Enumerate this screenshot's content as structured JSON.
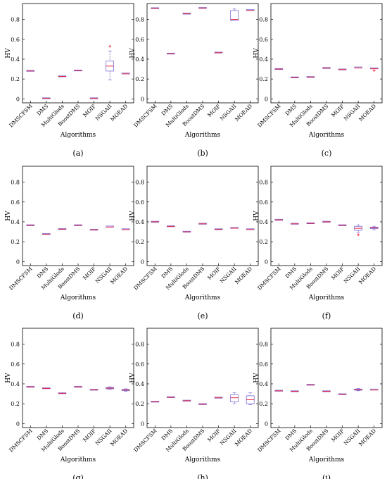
{
  "chart_data": [
    {
      "type": "box",
      "label": "(a)",
      "xlabel": "Algorithms",
      "ylabel": "HV",
      "ylim": [
        -0.04,
        0.96
      ],
      "yticks": [
        0,
        0.2,
        0.4,
        0.6,
        0.8
      ],
      "categories": [
        "DMSCFSM",
        "DMS",
        "MultiGlods",
        "BoostDMS",
        "MOIF",
        "NSGAII",
        "MOEAD"
      ],
      "boxes": [
        {
          "min": 0.279,
          "q1": 0.28,
          "median": 0.281,
          "q3": 0.282,
          "max": 0.283,
          "outliers": []
        },
        {
          "min": 0.003,
          "q1": 0.004,
          "median": 0.005,
          "q3": 0.006,
          "max": 0.007,
          "outliers": []
        },
        {
          "min": 0.224,
          "q1": 0.225,
          "median": 0.226,
          "q3": 0.227,
          "max": 0.228,
          "outliers": []
        },
        {
          "min": 0.283,
          "q1": 0.284,
          "median": 0.285,
          "q3": 0.286,
          "max": 0.287,
          "outliers": []
        },
        {
          "min": 0.003,
          "q1": 0.004,
          "median": 0.005,
          "q3": 0.006,
          "max": 0.007,
          "outliers": []
        },
        {
          "min": 0.19,
          "q1": 0.28,
          "median": 0.33,
          "q3": 0.38,
          "max": 0.48,
          "outliers": [
            0.53
          ]
        },
        {
          "min": 0.245,
          "q1": 0.248,
          "median": 0.252,
          "q3": 0.256,
          "max": 0.26,
          "outliers": []
        }
      ]
    },
    {
      "type": "box",
      "label": "(b)",
      "xlabel": "Algorithms",
      "ylabel": "HV",
      "ylim": [
        -0.04,
        0.96
      ],
      "yticks": [
        0,
        0.2,
        0.4,
        0.6,
        0.8
      ],
      "categories": [
        "DMSCFSM",
        "DMS",
        "MultiGlods",
        "BoostDMS",
        "MOIF",
        "NSGAII",
        "MOEAD"
      ],
      "boxes": [
        {
          "min": 0.91,
          "q1": 0.911,
          "median": 0.912,
          "q3": 0.913,
          "max": 0.914,
          "outliers": []
        },
        {
          "min": 0.453,
          "q1": 0.454,
          "median": 0.455,
          "q3": 0.456,
          "max": 0.457,
          "outliers": []
        },
        {
          "min": 0.855,
          "q1": 0.856,
          "median": 0.857,
          "q3": 0.858,
          "max": 0.859,
          "outliers": []
        },
        {
          "min": 0.913,
          "q1": 0.914,
          "median": 0.915,
          "q3": 0.916,
          "max": 0.917,
          "outliers": []
        },
        {
          "min": 0.463,
          "q1": 0.464,
          "median": 0.465,
          "q3": 0.466,
          "max": 0.467,
          "outliers": []
        },
        {
          "min": 0.79,
          "q1": 0.79,
          "median": 0.8,
          "q3": 0.89,
          "max": 0.905,
          "outliers": []
        },
        {
          "min": 0.88,
          "q1": 0.885,
          "median": 0.89,
          "q3": 0.895,
          "max": 0.9,
          "outliers": []
        }
      ]
    },
    {
      "type": "box",
      "label": "(c)",
      "xlabel": "Algorithms",
      "ylabel": "HV",
      "ylim": [
        -0.04,
        0.96
      ],
      "yticks": [
        0,
        0.2,
        0.4,
        0.6,
        0.8
      ],
      "categories": [
        "DMSCFSM",
        "DMS",
        "MultiGlods",
        "BoostDMS",
        "MOIF",
        "NSGAII",
        "MOEAD"
      ],
      "boxes": [
        {
          "min": 0.298,
          "q1": 0.299,
          "median": 0.3,
          "q3": 0.301,
          "max": 0.302,
          "outliers": []
        },
        {
          "min": 0.213,
          "q1": 0.214,
          "median": 0.215,
          "q3": 0.216,
          "max": 0.217,
          "outliers": []
        },
        {
          "min": 0.218,
          "q1": 0.219,
          "median": 0.22,
          "q3": 0.221,
          "max": 0.222,
          "outliers": []
        },
        {
          "min": 0.308,
          "q1": 0.309,
          "median": 0.31,
          "q3": 0.311,
          "max": 0.312,
          "outliers": []
        },
        {
          "min": 0.293,
          "q1": 0.294,
          "median": 0.295,
          "q3": 0.296,
          "max": 0.297,
          "outliers": []
        },
        {
          "min": 0.305,
          "q1": 0.308,
          "median": 0.312,
          "q3": 0.316,
          "max": 0.32,
          "outliers": []
        },
        {
          "min": 0.29,
          "q1": 0.298,
          "median": 0.303,
          "q3": 0.308,
          "max": 0.315,
          "outliers": [
            0.285
          ]
        }
      ]
    },
    {
      "type": "box",
      "label": "(d)",
      "xlabel": "Algorithms",
      "ylabel": "HV",
      "ylim": [
        -0.04,
        0.96
      ],
      "yticks": [
        0,
        0.2,
        0.4,
        0.6,
        0.8
      ],
      "categories": [
        "DMSCFSM",
        "DMS",
        "MultiGlods",
        "BoostDMS",
        "MOIF",
        "NSGAII",
        "MOEAD"
      ],
      "boxes": [
        {
          "min": 0.363,
          "q1": 0.364,
          "median": 0.365,
          "q3": 0.366,
          "max": 0.367,
          "outliers": []
        },
        {
          "min": 0.275,
          "q1": 0.276,
          "median": 0.277,
          "q3": 0.278,
          "max": 0.279,
          "outliers": []
        },
        {
          "min": 0.325,
          "q1": 0.326,
          "median": 0.327,
          "q3": 0.328,
          "max": 0.329,
          "outliers": []
        },
        {
          "min": 0.363,
          "q1": 0.364,
          "median": 0.365,
          "q3": 0.366,
          "max": 0.367,
          "outliers": []
        },
        {
          "min": 0.318,
          "q1": 0.319,
          "median": 0.32,
          "q3": 0.321,
          "max": 0.322,
          "outliers": []
        },
        {
          "min": 0.338,
          "q1": 0.343,
          "median": 0.348,
          "q3": 0.353,
          "max": 0.358,
          "outliers": []
        },
        {
          "min": 0.313,
          "q1": 0.318,
          "median": 0.322,
          "q3": 0.326,
          "max": 0.331,
          "outliers": []
        }
      ]
    },
    {
      "type": "box",
      "label": "(e)",
      "xlabel": "Algorithms",
      "ylabel": "HV",
      "ylim": [
        -0.04,
        0.96
      ],
      "yticks": [
        0,
        0.2,
        0.4,
        0.6,
        0.8
      ],
      "categories": [
        "DMSCFSM",
        "DMS",
        "MultiGlods",
        "BoostDMS",
        "MOIF",
        "NSGAII",
        "MOEAD"
      ],
      "boxes": [
        {
          "min": 0.398,
          "q1": 0.399,
          "median": 0.4,
          "q3": 0.401,
          "max": 0.402,
          "outliers": []
        },
        {
          "min": 0.353,
          "q1": 0.354,
          "median": 0.355,
          "q3": 0.356,
          "max": 0.357,
          "outliers": []
        },
        {
          "min": 0.298,
          "q1": 0.299,
          "median": 0.3,
          "q3": 0.301,
          "max": 0.302,
          "outliers": []
        },
        {
          "min": 0.378,
          "q1": 0.379,
          "median": 0.38,
          "q3": 0.381,
          "max": 0.382,
          "outliers": []
        },
        {
          "min": 0.323,
          "q1": 0.324,
          "median": 0.325,
          "q3": 0.326,
          "max": 0.327,
          "outliers": []
        },
        {
          "min": 0.328,
          "q1": 0.332,
          "median": 0.336,
          "q3": 0.34,
          "max": 0.344,
          "outliers": []
        },
        {
          "min": 0.317,
          "q1": 0.32,
          "median": 0.323,
          "q3": 0.326,
          "max": 0.329,
          "outliers": []
        }
      ]
    },
    {
      "type": "box",
      "label": "(f)",
      "xlabel": "Algorithms",
      "ylabel": "HV",
      "ylim": [
        -0.04,
        0.96
      ],
      "yticks": [
        0,
        0.2,
        0.4,
        0.6,
        0.8
      ],
      "categories": [
        "DMSCFSM",
        "DMS",
        "MultiGlods",
        "BoostDMS",
        "MOIF",
        "NSGAII",
        "MOEAD"
      ],
      "boxes": [
        {
          "min": 0.418,
          "q1": 0.419,
          "median": 0.42,
          "q3": 0.421,
          "max": 0.422,
          "outliers": []
        },
        {
          "min": 0.378,
          "q1": 0.379,
          "median": 0.38,
          "q3": 0.381,
          "max": 0.382,
          "outliers": []
        },
        {
          "min": 0.383,
          "q1": 0.384,
          "median": 0.385,
          "q3": 0.386,
          "max": 0.387,
          "outliers": []
        },
        {
          "min": 0.398,
          "q1": 0.399,
          "median": 0.4,
          "q3": 0.401,
          "max": 0.402,
          "outliers": []
        },
        {
          "min": 0.363,
          "q1": 0.364,
          "median": 0.365,
          "q3": 0.366,
          "max": 0.367,
          "outliers": []
        },
        {
          "min": 0.29,
          "q1": 0.315,
          "median": 0.335,
          "q3": 0.355,
          "max": 0.37,
          "outliers": [
            0.27
          ]
        },
        {
          "min": 0.32,
          "q1": 0.333,
          "median": 0.34,
          "q3": 0.347,
          "max": 0.356,
          "outliers": []
        }
      ]
    },
    {
      "type": "box",
      "label": "(g)",
      "xlabel": "Algorithms",
      "ylabel": "HV",
      "ylim": [
        -0.04,
        0.96
      ],
      "yticks": [
        0,
        0.2,
        0.4,
        0.6,
        0.8
      ],
      "categories": [
        "DMSCFSM",
        "DMS",
        "MultiGlods",
        "BoostDMS",
        "MOIF",
        "NSGAII",
        "MOEAD"
      ],
      "boxes": [
        {
          "min": 0.368,
          "q1": 0.369,
          "median": 0.37,
          "q3": 0.371,
          "max": 0.372,
          "outliers": []
        },
        {
          "min": 0.353,
          "q1": 0.354,
          "median": 0.355,
          "q3": 0.356,
          "max": 0.357,
          "outliers": []
        },
        {
          "min": 0.303,
          "q1": 0.304,
          "median": 0.305,
          "q3": 0.306,
          "max": 0.307,
          "outliers": []
        },
        {
          "min": 0.368,
          "q1": 0.369,
          "median": 0.37,
          "q3": 0.371,
          "max": 0.372,
          "outliers": []
        },
        {
          "min": 0.338,
          "q1": 0.339,
          "median": 0.34,
          "q3": 0.341,
          "max": 0.342,
          "outliers": []
        },
        {
          "min": 0.345,
          "q1": 0.35,
          "median": 0.357,
          "q3": 0.364,
          "max": 0.37,
          "outliers": []
        },
        {
          "min": 0.325,
          "q1": 0.332,
          "median": 0.338,
          "q3": 0.344,
          "max": 0.35,
          "outliers": []
        }
      ]
    },
    {
      "type": "box",
      "label": "(h)",
      "xlabel": "Algorithms",
      "ylabel": "HV",
      "ylim": [
        -0.04,
        0.96
      ],
      "yticks": [
        0,
        0.2,
        0.4,
        0.6,
        0.8
      ],
      "categories": [
        "DMSCFSM",
        "DMS",
        "MultiGlods",
        "BoostDMS",
        "MOIF",
        "NSGAII",
        "MOEAD"
      ],
      "boxes": [
        {
          "min": 0.218,
          "q1": 0.219,
          "median": 0.22,
          "q3": 0.221,
          "max": 0.222,
          "outliers": []
        },
        {
          "min": 0.263,
          "q1": 0.264,
          "median": 0.265,
          "q3": 0.266,
          "max": 0.267,
          "outliers": []
        },
        {
          "min": 0.228,
          "q1": 0.229,
          "median": 0.23,
          "q3": 0.231,
          "max": 0.232,
          "outliers": []
        },
        {
          "min": 0.193,
          "q1": 0.194,
          "median": 0.195,
          "q3": 0.196,
          "max": 0.197,
          "outliers": []
        },
        {
          "min": 0.258,
          "q1": 0.259,
          "median": 0.26,
          "q3": 0.261,
          "max": 0.262,
          "outliers": []
        },
        {
          "min": 0.2,
          "q1": 0.22,
          "median": 0.26,
          "q3": 0.29,
          "max": 0.31,
          "outliers": []
        },
        {
          "min": 0.19,
          "q1": 0.2,
          "median": 0.24,
          "q3": 0.28,
          "max": 0.31,
          "outliers": []
        }
      ]
    },
    {
      "type": "box",
      "label": "(i)",
      "xlabel": "Algorithms",
      "ylabel": "HV",
      "ylim": [
        -0.04,
        0.96
      ],
      "yticks": [
        0,
        0.2,
        0.4,
        0.6,
        0.8
      ],
      "categories": [
        "DMSCFSM",
        "DMS",
        "MultiGlods",
        "BoostDMS",
        "MOIF",
        "NSGAII",
        "MOEAD"
      ],
      "boxes": [
        {
          "min": 0.328,
          "q1": 0.329,
          "median": 0.33,
          "q3": 0.331,
          "max": 0.332,
          "outliers": []
        },
        {
          "min": 0.323,
          "q1": 0.324,
          "median": 0.325,
          "q3": 0.326,
          "max": 0.327,
          "outliers": []
        },
        {
          "min": 0.388,
          "q1": 0.389,
          "median": 0.39,
          "q3": 0.391,
          "max": 0.392,
          "outliers": []
        },
        {
          "min": 0.323,
          "q1": 0.324,
          "median": 0.325,
          "q3": 0.326,
          "max": 0.327,
          "outliers": []
        },
        {
          "min": 0.293,
          "q1": 0.294,
          "median": 0.295,
          "q3": 0.296,
          "max": 0.297,
          "outliers": []
        },
        {
          "min": 0.33,
          "q1": 0.336,
          "median": 0.342,
          "q3": 0.348,
          "max": 0.354,
          "outliers": []
        },
        {
          "min": 0.327,
          "q1": 0.333,
          "median": 0.338,
          "q3": 0.343,
          "max": 0.348,
          "outliers": []
        }
      ]
    }
  ],
  "colors": {
    "box": "#7b6cd9",
    "median": "#e8112d",
    "whisker": "#4a4aa8",
    "outlier": "#e8112d",
    "axis": "#000000",
    "text": "#000000"
  }
}
